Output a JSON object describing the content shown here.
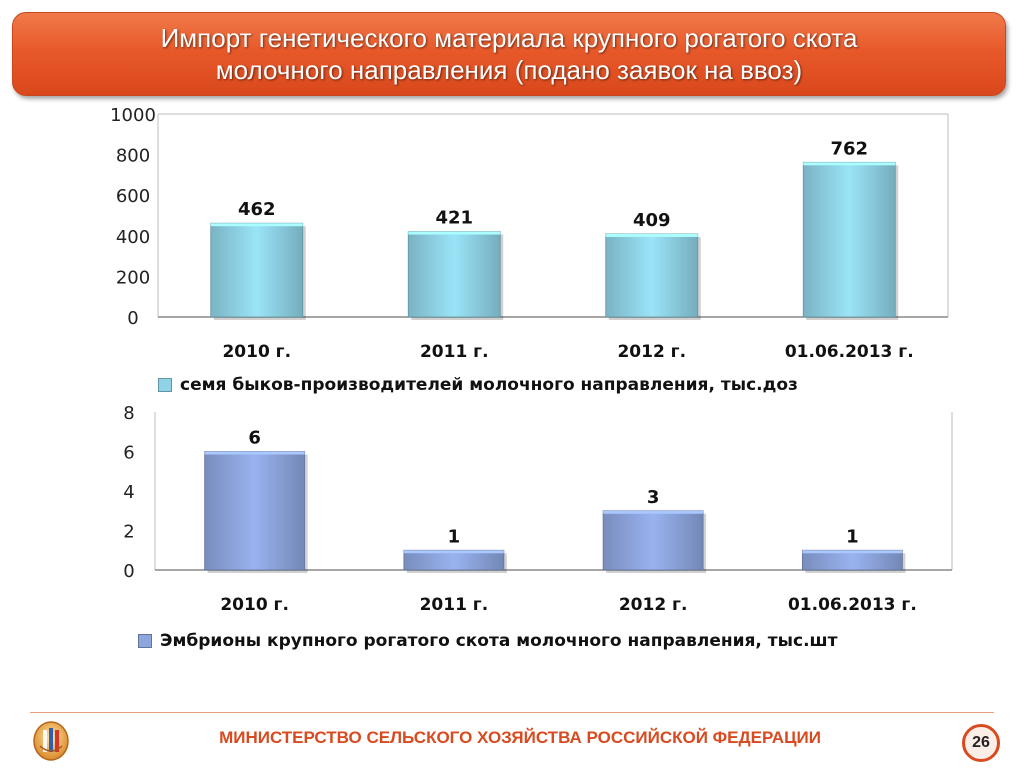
{
  "slide": {
    "title_line1": "Импорт генетического материала крупного рогатого скота",
    "title_line2": "молочного направления (подано заявок на ввоз)"
  },
  "chart_data": [
    {
      "type": "bar",
      "categories": [
        "2010 г.",
        "2011 г.",
        "2012 г.",
        "01.06.2013 г."
      ],
      "series": [
        {
          "name": "семя быков-производителей молочного направления, тыс.доз",
          "values": [
            462,
            421,
            409,
            762
          ],
          "color": "#8fd3e6"
        }
      ],
      "yticks": [
        0,
        200,
        400,
        600,
        800,
        1000
      ],
      "ylim": [
        0,
        1000
      ],
      "legend_position": "bottom"
    },
    {
      "type": "bar",
      "categories": [
        "2010 г.",
        "2011 г.",
        "2012 г.",
        "01.06.2013 г."
      ],
      "series": [
        {
          "name": "Эмбрионы крупного рогатого скота молочного направления, тыс.шт",
          "values": [
            6,
            1,
            3,
            1
          ],
          "color": "#8ea6de"
        }
      ],
      "yticks": [
        0,
        2,
        4,
        6,
        8
      ],
      "ylim": [
        0,
        8
      ],
      "legend_position": "bottom"
    }
  ],
  "footer": {
    "ministry": "МИНИСТЕРСТВО СЕЛЬСКОГО ХОЗЯЙСТВА РОССИЙСКОЙ ФЕДЕРАЦИИ",
    "page_number": "26",
    "logo_icon": "ministry-emblem-icon"
  }
}
